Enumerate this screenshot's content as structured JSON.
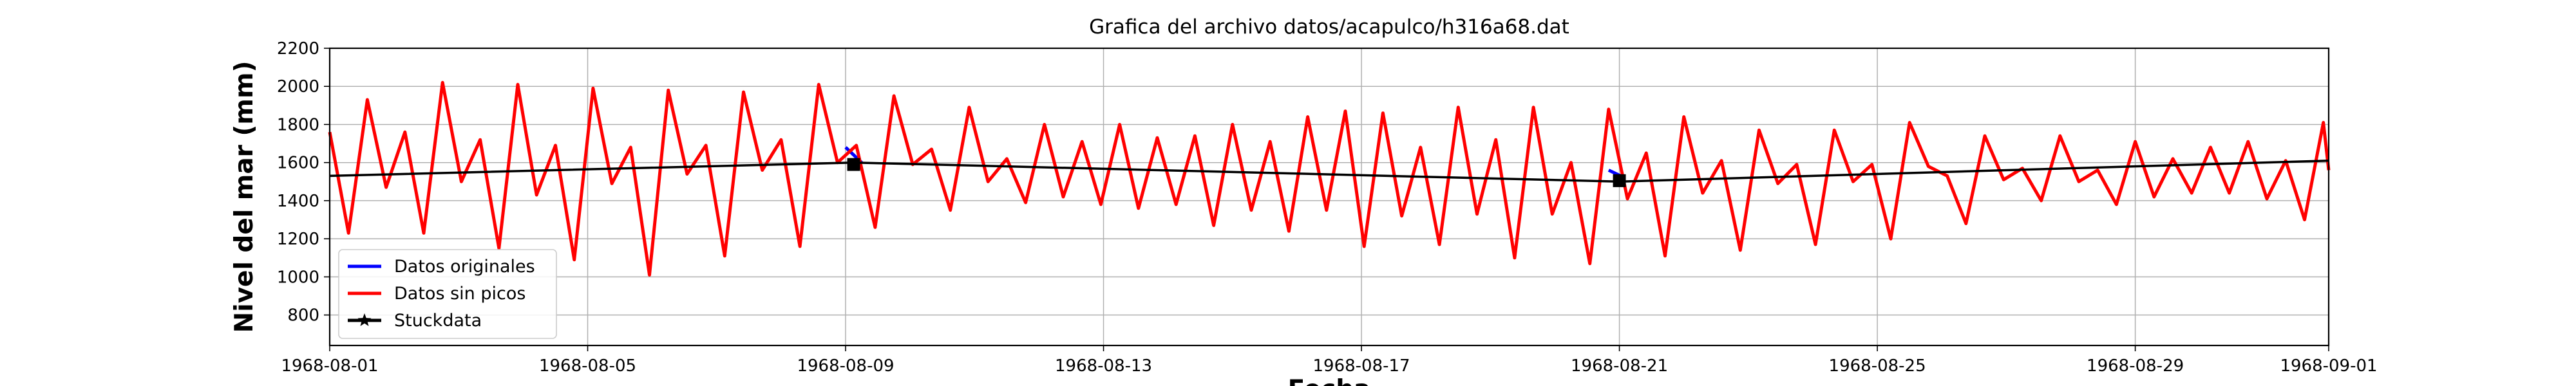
{
  "chart_data": {
    "type": "line",
    "title": "Grafica del archivo datos/acapulco/h316a68.dat",
    "xlabel": "Fecha",
    "ylabel": "Nivel del mar (mm)",
    "x_ticks": [
      "1968-08-01",
      "1968-08-05",
      "1968-08-09",
      "1968-08-13",
      "1968-08-17",
      "1968-08-21",
      "1968-08-25",
      "1968-08-29",
      "1968-09-01"
    ],
    "xlim": [
      "1968-08-01",
      "1968-09-01"
    ],
    "ylim": [
      640,
      2200
    ],
    "y_ticks": [
      800,
      1000,
      1200,
      1400,
      1600,
      1800,
      2000,
      2200
    ],
    "grid": true,
    "legend_position": "lower-left",
    "series": [
      {
        "name": "Datos originales",
        "color": "#0000ff",
        "points": [
          [
            "1968-08-09 00:00",
            1680
          ],
          [
            "1968-08-09 06:00",
            1600
          ],
          [
            "1968-08-20 20:00",
            1560
          ],
          [
            "1968-08-21 02:00",
            1520
          ]
        ]
      },
      {
        "name": "Datos sin picos",
        "color": "#ff0000",
        "points": [
          [
            "1968-08-01 00:00",
            1760
          ],
          [
            "1968-08-01 07:00",
            1230
          ],
          [
            "1968-08-01 14:00",
            1930
          ],
          [
            "1968-08-01 21:00",
            1470
          ],
          [
            "1968-08-02 04:00",
            1760
          ],
          [
            "1968-08-02 11:00",
            1230
          ],
          [
            "1968-08-02 18:00",
            2020
          ],
          [
            "1968-08-03 01:00",
            1500
          ],
          [
            "1968-08-03 08:00",
            1720
          ],
          [
            "1968-08-03 15:00",
            1150
          ],
          [
            "1968-08-03 22:00",
            2010
          ],
          [
            "1968-08-04 05:00",
            1430
          ],
          [
            "1968-08-04 12:00",
            1690
          ],
          [
            "1968-08-04 19:00",
            1090
          ],
          [
            "1968-08-05 02:00",
            1990
          ],
          [
            "1968-08-05 09:00",
            1490
          ],
          [
            "1968-08-05 16:00",
            1680
          ],
          [
            "1968-08-05 23:00",
            1010
          ],
          [
            "1968-08-06 06:00",
            1980
          ],
          [
            "1968-08-06 13:00",
            1540
          ],
          [
            "1968-08-06 20:00",
            1690
          ],
          [
            "1968-08-07 03:00",
            1110
          ],
          [
            "1968-08-07 10:00",
            1970
          ],
          [
            "1968-08-07 17:00",
            1560
          ],
          [
            "1968-08-08 00:00",
            1720
          ],
          [
            "1968-08-08 07:00",
            1160
          ],
          [
            "1968-08-08 14:00",
            2010
          ],
          [
            "1968-08-08 21:00",
            1600
          ],
          [
            "1968-08-09 04:00",
            1690
          ],
          [
            "1968-08-09 11:00",
            1260
          ],
          [
            "1968-08-09 18:00",
            1950
          ],
          [
            "1968-08-10 01:00",
            1590
          ],
          [
            "1968-08-10 08:00",
            1670
          ],
          [
            "1968-08-10 15:00",
            1350
          ],
          [
            "1968-08-10 22:00",
            1890
          ],
          [
            "1968-08-11 05:00",
            1500
          ],
          [
            "1968-08-11 12:00",
            1620
          ],
          [
            "1968-08-11 19:00",
            1390
          ],
          [
            "1968-08-12 02:00",
            1800
          ],
          [
            "1968-08-12 09:00",
            1420
          ],
          [
            "1968-08-12 16:00",
            1710
          ],
          [
            "1968-08-12 23:00",
            1380
          ],
          [
            "1968-08-13 06:00",
            1800
          ],
          [
            "1968-08-13 13:00",
            1360
          ],
          [
            "1968-08-13 20:00",
            1730
          ],
          [
            "1968-08-14 03:00",
            1380
          ],
          [
            "1968-08-14 10:00",
            1740
          ],
          [
            "1968-08-14 17:00",
            1270
          ],
          [
            "1968-08-15 00:00",
            1800
          ],
          [
            "1968-08-15 07:00",
            1350
          ],
          [
            "1968-08-15 14:00",
            1710
          ],
          [
            "1968-08-15 21:00",
            1240
          ],
          [
            "1968-08-16 04:00",
            1840
          ],
          [
            "1968-08-16 11:00",
            1350
          ],
          [
            "1968-08-16 18:00",
            1870
          ],
          [
            "1968-08-17 01:00",
            1160
          ],
          [
            "1968-08-17 08:00",
            1860
          ],
          [
            "1968-08-17 15:00",
            1320
          ],
          [
            "1968-08-17 22:00",
            1680
          ],
          [
            "1968-08-18 05:00",
            1170
          ],
          [
            "1968-08-18 12:00",
            1890
          ],
          [
            "1968-08-18 19:00",
            1330
          ],
          [
            "1968-08-19 02:00",
            1720
          ],
          [
            "1968-08-19 09:00",
            1100
          ],
          [
            "1968-08-19 16:00",
            1890
          ],
          [
            "1968-08-19 23:00",
            1330
          ],
          [
            "1968-08-20 06:00",
            1600
          ],
          [
            "1968-08-20 13:00",
            1070
          ],
          [
            "1968-08-20 20:00",
            1880
          ],
          [
            "1968-08-21 03:00",
            1410
          ],
          [
            "1968-08-21 10:00",
            1650
          ],
          [
            "1968-08-21 17:00",
            1110
          ],
          [
            "1968-08-22 00:00",
            1840
          ],
          [
            "1968-08-22 07:00",
            1440
          ],
          [
            "1968-08-22 14:00",
            1610
          ],
          [
            "1968-08-22 21:00",
            1140
          ],
          [
            "1968-08-23 04:00",
            1770
          ],
          [
            "1968-08-23 11:00",
            1490
          ],
          [
            "1968-08-23 18:00",
            1590
          ],
          [
            "1968-08-24 01:00",
            1170
          ],
          [
            "1968-08-24 08:00",
            1770
          ],
          [
            "1968-08-24 15:00",
            1500
          ],
          [
            "1968-08-24 22:00",
            1590
          ],
          [
            "1968-08-25 05:00",
            1200
          ],
          [
            "1968-08-25 12:00",
            1810
          ],
          [
            "1968-08-25 19:00",
            1580
          ],
          [
            "1968-08-26 02:00",
            1530
          ],
          [
            "1968-08-26 09:00",
            1280
          ],
          [
            "1968-08-26 16:00",
            1740
          ],
          [
            "1968-08-26 23:00",
            1510
          ],
          [
            "1968-08-27 06:00",
            1570
          ],
          [
            "1968-08-27 13:00",
            1400
          ],
          [
            "1968-08-27 20:00",
            1740
          ],
          [
            "1968-08-28 03:00",
            1500
          ],
          [
            "1968-08-28 10:00",
            1560
          ],
          [
            "1968-08-28 17:00",
            1380
          ],
          [
            "1968-08-29 00:00",
            1710
          ],
          [
            "1968-08-29 07:00",
            1420
          ],
          [
            "1968-08-29 14:00",
            1620
          ],
          [
            "1968-08-29 21:00",
            1440
          ],
          [
            "1968-08-30 04:00",
            1680
          ],
          [
            "1968-08-30 11:00",
            1440
          ],
          [
            "1968-08-30 18:00",
            1710
          ],
          [
            "1968-08-31 01:00",
            1410
          ],
          [
            "1968-08-31 08:00",
            1610
          ],
          [
            "1968-08-31 15:00",
            1300
          ],
          [
            "1968-08-31 22:00",
            1810
          ],
          [
            "1968-09-01 00:00",
            1560
          ]
        ]
      },
      {
        "name": "Stuckdata",
        "color": "#000000",
        "points": [
          [
            "1968-08-01 00:00",
            1530
          ],
          [
            "1968-08-09 03:00",
            1600
          ],
          [
            "1968-08-21 00:00",
            1500
          ],
          [
            "1968-09-01 00:00",
            1610
          ]
        ],
        "markers": [
          [
            "1968-08-09 03:00",
            1590
          ],
          [
            "1968-08-21 00:00",
            1505
          ]
        ]
      }
    ]
  }
}
